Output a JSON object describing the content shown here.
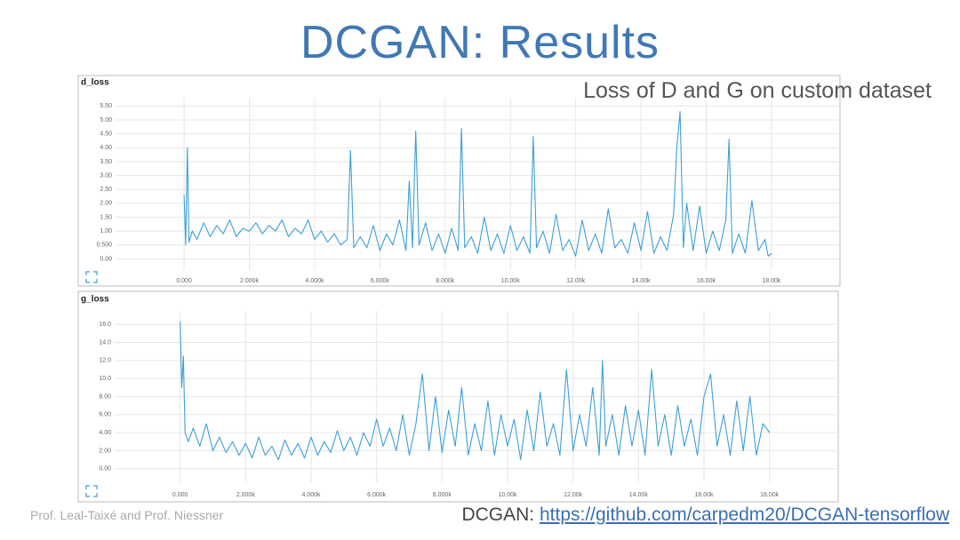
{
  "slide": {
    "title": "DCGAN: Results",
    "subtitle": "Loss of D and G on custom dataset",
    "footer": "Prof. Leal-Taixé and Prof. Niessner",
    "source_prefix": "DCGAN:",
    "source_link": "https://github.com/carpedm20/DCGAN-tensorflow"
  },
  "chart_data": [
    {
      "type": "line",
      "title": "d_loss",
      "grid": true,
      "xlim": [
        -2100,
        20100
      ],
      "ylim": [
        -0.4,
        5.8
      ],
      "xticks": [
        {
          "value": 0,
          "label": "0.000"
        },
        {
          "value": 2000,
          "label": "2.000k"
        },
        {
          "value": 4000,
          "label": "4.000k"
        },
        {
          "value": 6000,
          "label": "6.000k"
        },
        {
          "value": 8000,
          "label": "8.000k"
        },
        {
          "value": 10000,
          "label": "10.00k"
        },
        {
          "value": 12000,
          "label": "12.00k"
        },
        {
          "value": 14000,
          "label": "14.00k"
        },
        {
          "value": 16000,
          "label": "16.00k"
        },
        {
          "value": 18000,
          "label": "18.00k"
        }
      ],
      "yticks": [
        {
          "value": 0,
          "label": "0.00"
        },
        {
          "value": 0.5,
          "label": "0.500"
        },
        {
          "value": 1,
          "label": "1.00"
        },
        {
          "value": 1.5,
          "label": "1.50"
        },
        {
          "value": 2,
          "label": "2.00"
        },
        {
          "value": 2.5,
          "label": "2.50"
        },
        {
          "value": 3,
          "label": "3.00"
        },
        {
          "value": 3.5,
          "label": "3.50"
        },
        {
          "value": 4,
          "label": "4.00"
        },
        {
          "value": 4.5,
          "label": "4.50"
        },
        {
          "value": 5,
          "label": "5.00"
        },
        {
          "value": 5.5,
          "label": "5.50"
        }
      ],
      "color": "#3d9fd9",
      "x": [
        0,
        50,
        100,
        150,
        250,
        400,
        600,
        800,
        1000,
        1200,
        1400,
        1600,
        1800,
        2000,
        2200,
        2400,
        2600,
        2800,
        3000,
        3200,
        3400,
        3600,
        3800,
        4000,
        4200,
        4400,
        4600,
        4800,
        5000,
        5100,
        5200,
        5400,
        5600,
        5800,
        6000,
        6200,
        6400,
        6600,
        6800,
        6900,
        7000,
        7100,
        7200,
        7400,
        7600,
        7800,
        8000,
        8200,
        8400,
        8500,
        8600,
        8800,
        9000,
        9200,
        9400,
        9600,
        9800,
        10000,
        10200,
        10400,
        10600,
        10700,
        10800,
        11000,
        11200,
        11400,
        11600,
        11800,
        12000,
        12200,
        12400,
        12600,
        12800,
        13000,
        13200,
        13400,
        13600,
        13800,
        14000,
        14200,
        14400,
        14600,
        14800,
        15000,
        15100,
        15200,
        15300,
        15400,
        15600,
        15800,
        16000,
        16200,
        16400,
        16600,
        16700,
        16800,
        17000,
        17200,
        17400,
        17600,
        17800,
        17900,
        18000
      ],
      "values": [
        2.3,
        0.5,
        4.0,
        0.6,
        1.0,
        0.7,
        1.3,
        0.8,
        1.2,
        0.9,
        1.4,
        0.8,
        1.1,
        1.0,
        1.3,
        0.9,
        1.2,
        1.0,
        1.4,
        0.8,
        1.1,
        0.9,
        1.4,
        0.7,
        1.0,
        0.6,
        0.9,
        0.5,
        0.7,
        3.9,
        0.4,
        0.8,
        0.4,
        1.2,
        0.3,
        0.9,
        0.5,
        1.4,
        0.3,
        2.8,
        0.4,
        4.6,
        0.5,
        1.3,
        0.3,
        0.9,
        0.2,
        1.1,
        0.3,
        4.7,
        0.4,
        0.8,
        0.2,
        1.5,
        0.3,
        0.9,
        0.2,
        1.2,
        0.3,
        0.8,
        0.2,
        4.4,
        0.4,
        1.0,
        0.2,
        1.6,
        0.3,
        0.7,
        0.1,
        1.4,
        0.3,
        0.9,
        0.2,
        1.8,
        0.4,
        0.7,
        0.2,
        1.3,
        0.3,
        1.7,
        0.2,
        0.8,
        0.3,
        1.6,
        4.0,
        5.3,
        0.4,
        2.0,
        0.3,
        1.9,
        0.2,
        1.0,
        0.3,
        1.4,
        4.3,
        0.2,
        0.9,
        0.2,
        2.1,
        0.3,
        0.7,
        0.1,
        0.2
      ]
    },
    {
      "type": "line",
      "title": "g_loss",
      "grid": true,
      "xlim": [
        -2000,
        20100
      ],
      "ylim": [
        -1.5,
        17.5
      ],
      "xticks": [
        {
          "value": 0,
          "label": "0.000"
        },
        {
          "value": 2000,
          "label": "2.000k"
        },
        {
          "value": 4000,
          "label": "4.000k"
        },
        {
          "value": 6000,
          "label": "6.000k"
        },
        {
          "value": 8000,
          "label": "8.000k"
        },
        {
          "value": 10000,
          "label": "10.00k"
        },
        {
          "value": 12000,
          "label": "12.00k"
        },
        {
          "value": 14000,
          "label": "14.00k"
        },
        {
          "value": 16000,
          "label": "16.00k"
        },
        {
          "value": 18000,
          "label": "18.00k"
        }
      ],
      "yticks": [
        {
          "value": 0,
          "label": "0.00"
        },
        {
          "value": 2,
          "label": "2.00"
        },
        {
          "value": 4,
          "label": "4.00"
        },
        {
          "value": 6,
          "label": "6.00"
        },
        {
          "value": 8,
          "label": "8.00"
        },
        {
          "value": 10,
          "label": "10.0"
        },
        {
          "value": 12,
          "label": "12.0"
        },
        {
          "value": 14,
          "label": "14.0"
        },
        {
          "value": 16,
          "label": "16.0"
        }
      ],
      "color": "#3d9fd9",
      "x": [
        0,
        50,
        100,
        150,
        250,
        400,
        600,
        800,
        1000,
        1200,
        1400,
        1600,
        1800,
        2000,
        2200,
        2400,
        2600,
        2800,
        3000,
        3200,
        3400,
        3600,
        3800,
        4000,
        4200,
        4400,
        4600,
        4800,
        5000,
        5200,
        5400,
        5600,
        5800,
        6000,
        6200,
        6400,
        6600,
        6800,
        7000,
        7200,
        7400,
        7600,
        7800,
        8000,
        8200,
        8400,
        8600,
        8800,
        9000,
        9200,
        9400,
        9600,
        9800,
        10000,
        10200,
        10400,
        10600,
        10800,
        11000,
        11200,
        11400,
        11600,
        11800,
        12000,
        12200,
        12400,
        12600,
        12800,
        12900,
        13000,
        13200,
        13400,
        13600,
        13800,
        14000,
        14200,
        14400,
        14600,
        14800,
        15000,
        15200,
        15400,
        15600,
        15800,
        16000,
        16200,
        16400,
        16600,
        16800,
        17000,
        17200,
        17400,
        17600,
        17800,
        18000
      ],
      "values": [
        16.3,
        9,
        12.5,
        4,
        3,
        4.5,
        2.5,
        5,
        2,
        3.5,
        1.8,
        3,
        1.5,
        2.8,
        1.2,
        3.5,
        1.5,
        2.5,
        1.0,
        3.2,
        1.5,
        2.8,
        1.2,
        3.5,
        1.5,
        3.0,
        1.8,
        4.2,
        2.0,
        3.5,
        1.5,
        4.0,
        2.5,
        5.5,
        2.5,
        4.5,
        2.0,
        6,
        1.5,
        5,
        10.5,
        2,
        8,
        1.8,
        6.5,
        2.5,
        9,
        1.5,
        5,
        2,
        7.5,
        1.5,
        6,
        2.5,
        5.5,
        1.0,
        6.5,
        2,
        8.5,
        2.5,
        5,
        1.5,
        11,
        2,
        6,
        2.5,
        9,
        1.5,
        12,
        2.5,
        6,
        1.5,
        7,
        2.5,
        6.5,
        1.5,
        11,
        2.5,
        6,
        1.5,
        7,
        2.5,
        5.5,
        1.5,
        8,
        10.5,
        2.5,
        6,
        1.5,
        7.5,
        2,
        8,
        1.5,
        5,
        4
      ]
    }
  ]
}
